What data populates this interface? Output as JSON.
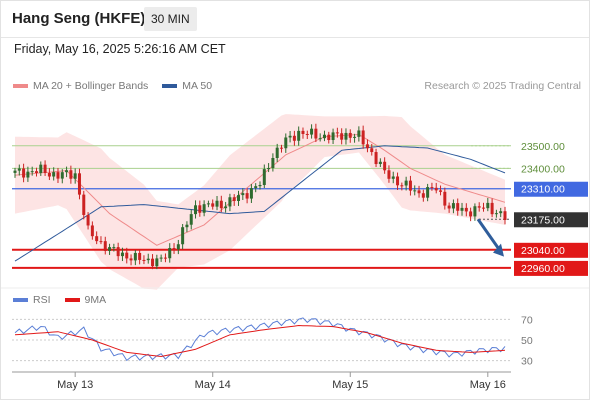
{
  "header": {
    "title": "Hang Seng (HKFE)",
    "timeframe": "30 MIN"
  },
  "datetime": "Friday, May 16, 2025 5:26:16 AM CET",
  "legend": {
    "ma20": "MA 20 + Bollinger Bands",
    "ma50": "MA 50",
    "credit": "Research © 2025 Trading Central"
  },
  "rsi_legend": {
    "rsi": "RSI",
    "ma": "9MA"
  },
  "colors": {
    "ma20": "#ef8a8a",
    "band_fill": "#fde4e4",
    "ma50": "#2f5a9b",
    "resistance": "#a9d18e",
    "pivot": "#4169e1",
    "support": "#e11818",
    "current": "#333333",
    "arrow": "#2f5d9b",
    "rsi": "#5b7fd6",
    "rsi_ma": "#e11818",
    "candle_up": "#2f6b2f",
    "candle_down": "#cc2222"
  },
  "chart_data": [
    {
      "type": "candlestick",
      "ylim": [
        22880,
        23720
      ],
      "x_ticks": [
        "May 13",
        "May 14",
        "May 15",
        "May 16"
      ],
      "levels": [
        {
          "label": "23500.00",
          "value": 23500,
          "kind": "resistance"
        },
        {
          "label": "23400.00",
          "value": 23400,
          "kind": "resistance"
        },
        {
          "label": "23310.00",
          "value": 23310,
          "kind": "pivot"
        },
        {
          "label": "23175.00",
          "value": 23175,
          "kind": "current"
        },
        {
          "label": "23040.00",
          "value": 23040,
          "kind": "support"
        },
        {
          "label": "22960.00",
          "value": 22960,
          "kind": "support"
        }
      ],
      "close_anchors": [
        [
          0,
          23380
        ],
        [
          6,
          23390
        ],
        [
          10,
          23370
        ],
        [
          14,
          23375
        ],
        [
          17,
          23120
        ],
        [
          22,
          23040
        ],
        [
          28,
          23000
        ],
        [
          34,
          22990
        ],
        [
          38,
          23080
        ],
        [
          42,
          23230
        ],
        [
          48,
          23240
        ],
        [
          52,
          23270
        ],
        [
          57,
          23330
        ],
        [
          60,
          23460
        ],
        [
          63,
          23520
        ],
        [
          66,
          23560
        ],
        [
          70,
          23545
        ],
        [
          74,
          23540
        ],
        [
          77,
          23550
        ],
        [
          80,
          23540
        ],
        [
          83,
          23470
        ],
        [
          86,
          23380
        ],
        [
          90,
          23330
        ],
        [
          94,
          23290
        ],
        [
          98,
          23310
        ],
        [
          101,
          23230
        ],
        [
          105,
          23210
        ],
        [
          110,
          23230
        ],
        [
          112,
          23210
        ],
        [
          114,
          23180
        ]
      ],
      "ma20_anchors": [
        [
          0,
          23370
        ],
        [
          12,
          23390
        ],
        [
          22,
          23200
        ],
        [
          33,
          23060
        ],
        [
          44,
          23150
        ],
        [
          55,
          23330
        ],
        [
          63,
          23460
        ],
        [
          72,
          23540
        ],
        [
          80,
          23550
        ],
        [
          86,
          23480
        ],
        [
          92,
          23400
        ],
        [
          100,
          23330
        ],
        [
          114,
          23250
        ]
      ],
      "band_width_anchors": [
        [
          0,
          170
        ],
        [
          10,
          150
        ],
        [
          20,
          250
        ],
        [
          30,
          230
        ],
        [
          38,
          140
        ],
        [
          50,
          210
        ],
        [
          62,
          190
        ],
        [
          72,
          90
        ],
        [
          80,
          80
        ],
        [
          90,
          200
        ],
        [
          100,
          130
        ],
        [
          114,
          100
        ]
      ],
      "ma50_anchors": [
        [
          0,
          22990
        ],
        [
          10,
          23110
        ],
        [
          20,
          23230
        ],
        [
          30,
          23240
        ],
        [
          40,
          23220
        ],
        [
          50,
          23200
        ],
        [
          58,
          23210
        ],
        [
          66,
          23330
        ],
        [
          76,
          23480
        ],
        [
          86,
          23500
        ],
        [
          96,
          23490
        ],
        [
          106,
          23440
        ],
        [
          114,
          23380
        ]
      ],
      "forecast_arrow": {
        "from": 23175,
        "to": 23010
      }
    },
    {
      "type": "line",
      "name": "RSI",
      "ylim": [
        20,
        80
      ],
      "y_ticks": [
        "70",
        "50",
        "30"
      ],
      "rsi_anchors": [
        [
          0,
          57
        ],
        [
          6,
          63
        ],
        [
          10,
          52
        ],
        [
          16,
          60
        ],
        [
          20,
          42
        ],
        [
          26,
          33
        ],
        [
          32,
          34
        ],
        [
          38,
          35
        ],
        [
          44,
          56
        ],
        [
          50,
          60
        ],
        [
          56,
          63
        ],
        [
          62,
          67
        ],
        [
          68,
          70
        ],
        [
          74,
          66
        ],
        [
          78,
          60
        ],
        [
          84,
          54
        ],
        [
          90,
          45
        ],
        [
          96,
          40
        ],
        [
          102,
          36
        ],
        [
          108,
          40
        ],
        [
          114,
          42
        ]
      ],
      "ma9_anchors": [
        [
          0,
          55
        ],
        [
          10,
          58
        ],
        [
          18,
          50
        ],
        [
          26,
          38
        ],
        [
          34,
          34
        ],
        [
          42,
          41
        ],
        [
          50,
          55
        ],
        [
          58,
          60
        ],
        [
          66,
          64
        ],
        [
          74,
          63
        ],
        [
          82,
          57
        ],
        [
          90,
          47
        ],
        [
          98,
          40
        ],
        [
          106,
          38
        ],
        [
          114,
          40
        ]
      ]
    }
  ]
}
